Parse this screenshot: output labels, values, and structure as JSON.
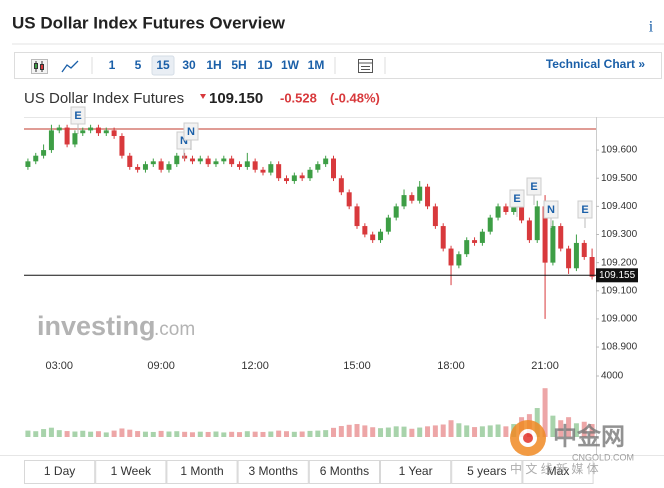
{
  "header": {
    "title": "US Dollar Index Futures Overview",
    "info": "i"
  },
  "toolbar": {
    "intervals": [
      "1",
      "5",
      "15",
      "30",
      "1H",
      "5H",
      "1D",
      "1W",
      "1M"
    ],
    "selected_interval": 2,
    "technical_chart": "Technical Chart »"
  },
  "quote": {
    "name": "US Dollar Index Futures",
    "last": "109.150",
    "change": "-0.528",
    "change_percent": "(-0.48%)"
  },
  "chart_data": {
    "type": "candlestick",
    "categories": [
      null,
      null,
      null,
      null,
      "03:00",
      null,
      null,
      null,
      null,
      null,
      null,
      null,
      null,
      null,
      null,
      null,
      null,
      "09:00",
      null,
      null,
      null,
      null,
      null,
      null,
      null,
      null,
      null,
      null,
      null,
      "12:00",
      null,
      null,
      null,
      null,
      null,
      null,
      null,
      null,
      null,
      null,
      null,
      null,
      "15:00",
      null,
      null,
      null,
      null,
      null,
      null,
      null,
      null,
      null,
      null,
      null,
      "18:00",
      null,
      null,
      null,
      null,
      null,
      null,
      null,
      null,
      null,
      null,
      null,
      "21:00",
      null,
      null,
      null,
      null,
      null,
      null
    ],
    "open": [
      109.54,
      109.56,
      109.58,
      109.6,
      109.67,
      109.68,
      109.62,
      109.66,
      109.67,
      109.68,
      109.66,
      109.67,
      109.65,
      109.58,
      109.54,
      109.53,
      109.55,
      109.56,
      109.53,
      109.55,
      109.58,
      109.57,
      109.56,
      109.57,
      109.55,
      109.56,
      109.57,
      109.55,
      109.54,
      109.56,
      109.53,
      109.52,
      109.55,
      109.5,
      109.49,
      109.51,
      109.5,
      109.53,
      109.55,
      109.57,
      109.5,
      109.45,
      109.4,
      109.33,
      109.3,
      109.28,
      109.31,
      109.36,
      109.4,
      109.44,
      109.42,
      109.47,
      109.4,
      109.33,
      109.25,
      109.19,
      109.23,
      109.28,
      109.27,
      109.31,
      109.36,
      109.4,
      109.38,
      109.42,
      109.35,
      109.28,
      109.4,
      109.2,
      109.33,
      109.25,
      109.18,
      109.27,
      109.22
    ],
    "high": [
      109.57,
      109.59,
      109.62,
      109.69,
      109.69,
      109.69,
      109.67,
      109.68,
      109.69,
      109.69,
      109.68,
      109.68,
      109.66,
      109.59,
      109.55,
      109.56,
      109.57,
      109.57,
      109.56,
      109.59,
      109.59,
      109.58,
      109.58,
      109.58,
      109.57,
      109.58,
      109.58,
      109.56,
      109.59,
      109.57,
      109.54,
      109.56,
      109.56,
      109.51,
      109.52,
      109.52,
      109.54,
      109.56,
      109.58,
      109.58,
      109.51,
      109.46,
      109.41,
      109.34,
      109.31,
      109.32,
      109.37,
      109.41,
      109.46,
      109.45,
      109.49,
      109.48,
      109.41,
      109.34,
      109.26,
      109.24,
      109.29,
      109.29,
      109.32,
      109.37,
      109.41,
      109.41,
      109.43,
      109.43,
      109.36,
      109.42,
      109.44,
      109.35,
      109.34,
      109.26,
      109.3,
      109.28,
      109.25
    ],
    "low": [
      109.53,
      109.55,
      109.57,
      109.59,
      109.66,
      109.61,
      109.61,
      109.65,
      109.66,
      109.65,
      109.65,
      109.64,
      109.57,
      109.53,
      109.52,
      109.52,
      109.54,
      109.52,
      109.52,
      109.54,
      109.56,
      109.55,
      109.55,
      109.54,
      109.54,
      109.55,
      109.54,
      109.53,
      109.53,
      109.52,
      109.51,
      109.51,
      109.49,
      109.48,
      109.48,
      109.49,
      109.49,
      109.52,
      109.54,
      109.49,
      109.44,
      109.39,
      109.32,
      109.29,
      109.27,
      109.27,
      109.3,
      109.35,
      109.39,
      109.41,
      109.41,
      109.39,
      109.32,
      109.24,
      109.12,
      109.18,
      109.22,
      109.26,
      109.26,
      109.3,
      109.35,
      109.37,
      109.37,
      109.34,
      109.27,
      109.27,
      109.0,
      109.19,
      109.24,
      109.16,
      109.17,
      109.21,
      109.14
    ],
    "close": [
      109.56,
      109.58,
      109.6,
      109.67,
      109.68,
      109.62,
      109.66,
      109.67,
      109.68,
      109.66,
      109.67,
      109.65,
      109.58,
      109.54,
      109.53,
      109.55,
      109.56,
      109.53,
      109.55,
      109.58,
      109.57,
      109.56,
      109.57,
      109.55,
      109.56,
      109.57,
      109.55,
      109.54,
      109.56,
      109.53,
      109.52,
      109.55,
      109.5,
      109.49,
      109.51,
      109.5,
      109.53,
      109.55,
      109.57,
      109.5,
      109.45,
      109.4,
      109.33,
      109.3,
      109.28,
      109.31,
      109.36,
      109.4,
      109.44,
      109.42,
      109.47,
      109.4,
      109.33,
      109.25,
      109.19,
      109.23,
      109.28,
      109.27,
      109.31,
      109.36,
      109.4,
      109.38,
      109.42,
      109.35,
      109.28,
      109.4,
      109.2,
      109.33,
      109.25,
      109.18,
      109.27,
      109.22,
      109.15
    ],
    "up_color": "#3d9e45",
    "down_color": "#d8393c",
    "ylim": [
      108.854,
      109.714
    ],
    "yticks": [
      {
        "value": 109.6,
        "label": "109.600"
      },
      {
        "value": 109.5,
        "label": "109.500"
      },
      {
        "value": 109.4,
        "label": "109.400"
      },
      {
        "value": 109.3,
        "label": "109.300"
      },
      {
        "value": 109.2,
        "label": "109.200"
      },
      {
        "value": 109.1,
        "label": "109.100"
      },
      {
        "value": 109.0,
        "label": "109.000"
      },
      {
        "value": 108.9,
        "label": "108.900"
      }
    ],
    "reference_line": 109.675,
    "reference_color": "#c0392b",
    "last_price": 109.155,
    "volume": [
      420,
      380,
      520,
      610,
      450,
      390,
      360,
      410,
      350,
      380,
      300,
      420,
      560,
      480,
      390,
      350,
      330,
      400,
      360,
      380,
      340,
      310,
      350,
      330,
      360,
      300,
      340,
      320,
      380,
      350,
      330,
      360,
      420,
      380,
      340,
      360,
      400,
      420,
      450,
      600,
      720,
      800,
      850,
      760,
      640,
      580,
      620,
      700,
      680,
      540,
      620,
      700,
      760,
      820,
      1100,
      900,
      760,
      650,
      700,
      760,
      820,
      700,
      850,
      1300,
      1500,
      1900,
      3200,
      1400,
      1100,
      1300,
      900,
      1000,
      850
    ],
    "volume_ylim": [
      0,
      4000
    ],
    "volume_ticks": [
      4000
    ],
    "event_flags": [
      "E",
      "N",
      "N",
      "E",
      "E",
      "N",
      "E"
    ]
  },
  "watermarks": {
    "investing": "investing",
    "dotcom": ".com",
    "cngold": "中金网",
    "cngold_url": "CNGOLD.COM",
    "cngold_tag": "中 文 线 新 媒 体"
  },
  "ranges": [
    "1 Day",
    "1 Week",
    "1 Month",
    "3 Months",
    "6 Months",
    "1 Year",
    "5 years",
    "Max"
  ]
}
